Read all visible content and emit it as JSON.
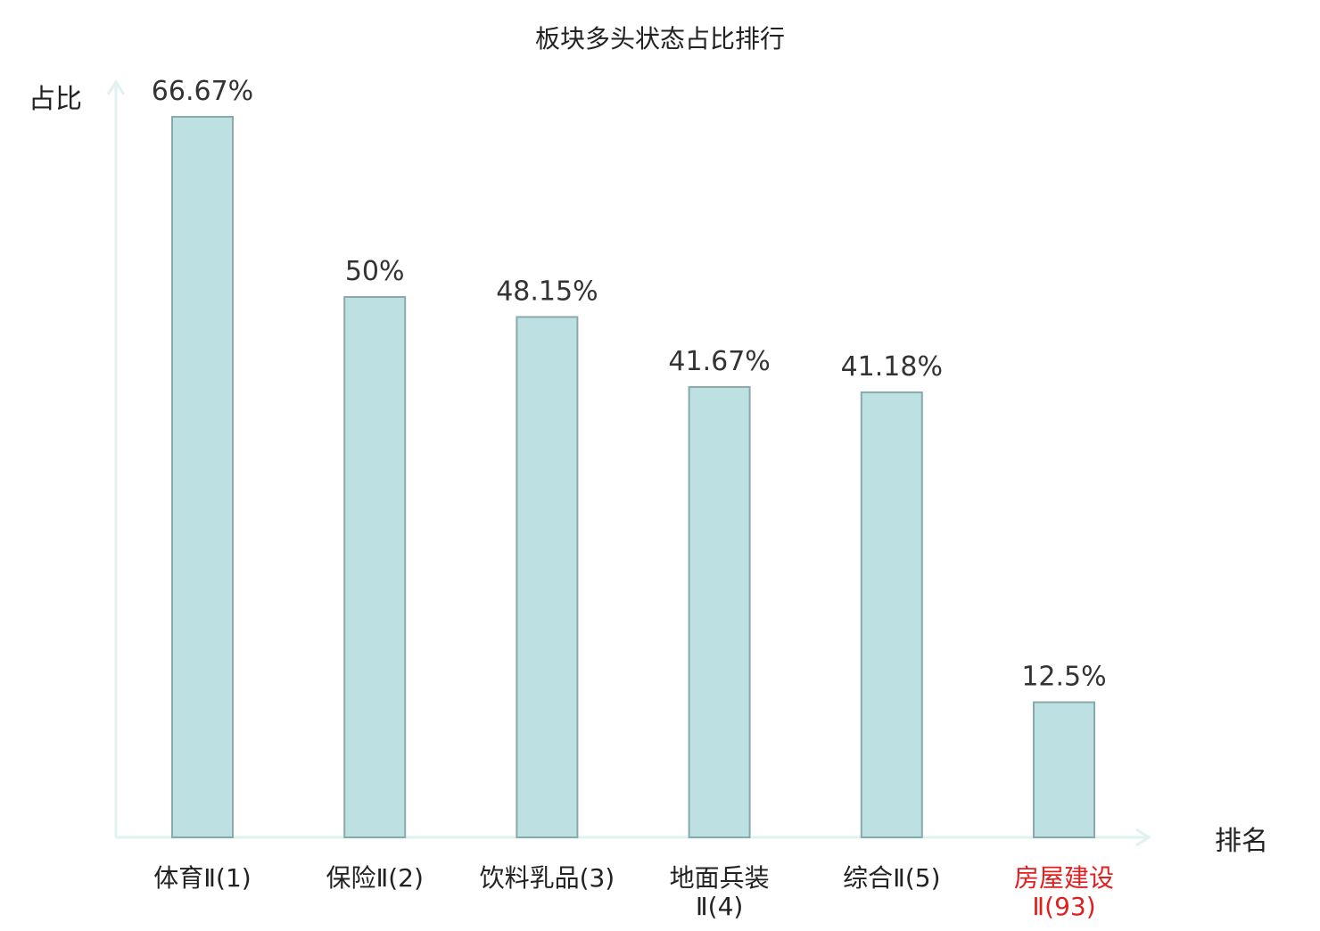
{
  "chart_data": {
    "type": "bar",
    "title": "板块多头状态占比排行",
    "ylabel": "占比",
    "xlabel": "排名",
    "categories": [
      [
        "体育Ⅱ(1)"
      ],
      [
        "保险Ⅱ(2)"
      ],
      [
        "饮料乳品(3)"
      ],
      [
        "地面兵装",
        "Ⅱ(4)"
      ],
      [
        "综合Ⅱ(5)"
      ],
      [
        "房屋建设",
        "Ⅱ(93)"
      ]
    ],
    "values": [
      66.67,
      50,
      48.15,
      41.67,
      41.18,
      12.5
    ],
    "value_labels": [
      "66.67%",
      "50%",
      "48.15%",
      "41.67%",
      "41.18%",
      "12.5%"
    ],
    "highlight_index": 5,
    "ylim": [
      0,
      66.67
    ],
    "grid": false,
    "colors": {
      "bar_fill": "#bde0e3",
      "bar_stroke": "#8aa9ab",
      "axis": "#e0f2f0",
      "label_text": "#222222",
      "value_text": "#333333",
      "highlight_text": "#e02020"
    }
  }
}
